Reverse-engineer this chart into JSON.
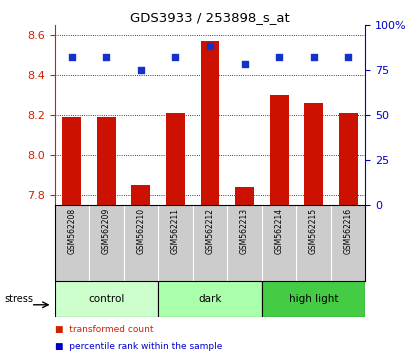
{
  "title": "GDS3933 / 253898_s_at",
  "samples": [
    "GSM562208",
    "GSM562209",
    "GSM562210",
    "GSM562211",
    "GSM562212",
    "GSM562213",
    "GSM562214",
    "GSM562215",
    "GSM562216"
  ],
  "transformed_counts": [
    8.19,
    8.19,
    7.85,
    8.21,
    8.57,
    7.84,
    8.3,
    8.26,
    8.21
  ],
  "percentile_ranks": [
    82,
    82,
    75,
    82,
    88,
    78,
    82,
    82,
    82
  ],
  "groups": [
    {
      "label": "control",
      "start": 0,
      "end": 3,
      "color": "#ccffcc"
    },
    {
      "label": "dark",
      "start": 3,
      "end": 6,
      "color": "#aaffaa"
    },
    {
      "label": "high light",
      "start": 6,
      "end": 9,
      "color": "#44cc44"
    }
  ],
  "stress_label": "stress",
  "ylim_left": [
    7.75,
    8.65
  ],
  "yticks_left": [
    7.8,
    8.0,
    8.2,
    8.4,
    8.6
  ],
  "ylim_right": [
    0,
    100
  ],
  "yticks_right": [
    0,
    25,
    50,
    75,
    100
  ],
  "yticklabels_right": [
    "0",
    "25",
    "50",
    "75",
    "100%"
  ],
  "bar_color": "#cc1100",
  "dot_color": "#1133cc",
  "bar_bottom": 7.75,
  "left_tick_color": "#cc2200",
  "right_tick_color": "#0000cc",
  "legend_items": [
    {
      "color": "#cc2200",
      "label": "transformed count"
    },
    {
      "color": "#0000cc",
      "label": "percentile rank within the sample"
    }
  ],
  "fig_width": 4.2,
  "fig_height": 3.54,
  "dpi": 100
}
